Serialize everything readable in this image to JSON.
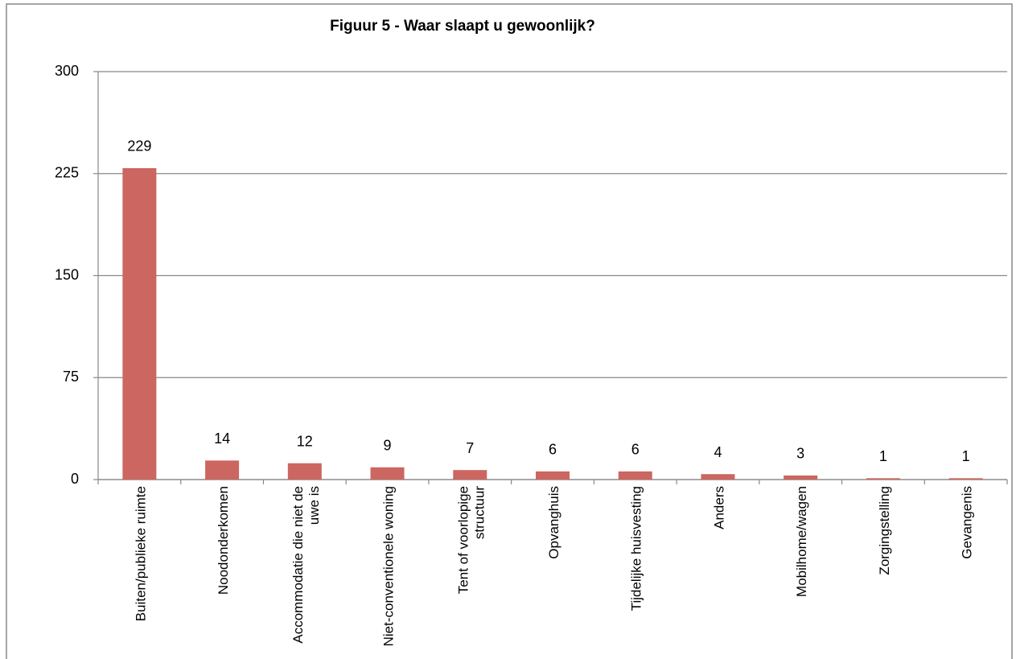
{
  "chart_data": {
    "type": "bar",
    "title": "Figuur 5 - Waar slaapt u gewoonlijk?",
    "categories": [
      "Buiten/publieke ruimte",
      "Noodonderkomen",
      "Accommodatie die niet de uwe is",
      "Niet-conventionele woning",
      "Tent of voorlopige structuur",
      "Opvanghuis",
      "Tijdelijke huisvesting",
      "Anders",
      "Mobilhome/wagen",
      "Zorgingstelling",
      "Gevangenis"
    ],
    "values": [
      229,
      14,
      12,
      9,
      7,
      6,
      6,
      4,
      3,
      1,
      1
    ],
    "color": "#cc6660",
    "ylim": [
      0,
      300
    ],
    "yticks": [
      0,
      75,
      150,
      225,
      300
    ],
    "grid": true
  }
}
